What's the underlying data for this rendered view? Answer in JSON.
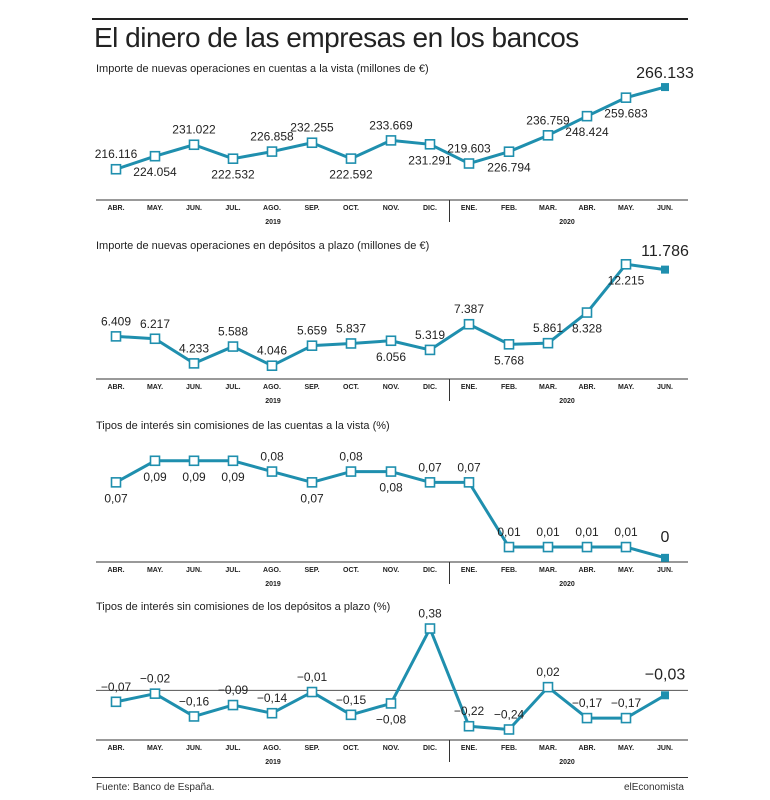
{
  "page": {
    "title": "El dinero de las empresas en los bancos",
    "source": "Fuente: Banco de España.",
    "brand": "elEconomista",
    "line_color": "#1f8fae",
    "last_marker_color": "#1f8fae"
  },
  "chart_data": [
    {
      "type": "line",
      "title": "Importe de nuevas operaciones en cuentas a la vista (millones de €)",
      "categories": [
        "ABR.",
        "MAY.",
        "JUN.",
        "JUL.",
        "AGO.",
        "SEP.",
        "OCT.",
        "NOV.",
        "DIC.",
        "ENE.",
        "FEB.",
        "MAR.",
        "ABR.",
        "MAY.",
        "JUN."
      ],
      "years": [
        "2019",
        "2020"
      ],
      "values": [
        216116,
        224054,
        231022,
        222532,
        226858,
        232255,
        222592,
        233669,
        231291,
        219603,
        226794,
        236759,
        248424,
        259683,
        266133
      ],
      "labels": [
        "216.116",
        "224.054",
        "231.022",
        "222.532",
        "226.858",
        "232.255",
        "222.592",
        "233.669",
        "231.291",
        "219.603",
        "226.794",
        "236.759",
        "248.424",
        "259.683",
        "266.133"
      ],
      "label_pos": [
        "above",
        "below",
        "above",
        "below",
        "above",
        "above",
        "below",
        "above",
        "below",
        "above",
        "below",
        "above",
        "below",
        "below",
        "above"
      ],
      "ylim": [
        212000,
        268000
      ]
    },
    {
      "type": "line",
      "title": "Importe de nuevas operaciones en depósitos a plazo (millones de €)",
      "categories": [
        "ABR.",
        "MAY.",
        "JUN.",
        "JUL.",
        "AGO.",
        "SEP.",
        "OCT.",
        "NOV.",
        "DIC.",
        "ENE.",
        "FEB.",
        "MAR.",
        "ABR.",
        "MAY.",
        "JUN."
      ],
      "years": [
        "2019",
        "2020"
      ],
      "values": [
        6409,
        6217,
        4233,
        5588,
        4046,
        5659,
        5837,
        6056,
        5319,
        7387,
        5768,
        5861,
        8328,
        12215,
        11786
      ],
      "labels": [
        "6.409",
        "6.217",
        "4.233",
        "5.588",
        "4.046",
        "5.659",
        "5.837",
        "6.056",
        "5.319",
        "7.387",
        "5.768",
        "5.861",
        "8.328",
        "12.215",
        "11.786"
      ],
      "label_pos": [
        "above",
        "above",
        "above",
        "above",
        "above",
        "above",
        "above",
        "below",
        "above",
        "above",
        "below",
        "above",
        "below",
        "below",
        "above"
      ],
      "ylim": [
        3700,
        12400
      ]
    },
    {
      "type": "line",
      "title": "Tipos de interés sin comisiones de las cuentas a la vista (%)",
      "categories": [
        "ABR.",
        "MAY.",
        "JUN.",
        "JUL.",
        "AGO.",
        "SEP.",
        "OCT.",
        "NOV.",
        "DIC.",
        "ENE.",
        "FEB.",
        "MAR.",
        "ABR.",
        "MAY.",
        "JUN."
      ],
      "years": [
        "2019",
        "2020"
      ],
      "values": [
        0.07,
        0.09,
        0.09,
        0.09,
        0.08,
        0.07,
        0.08,
        0.08,
        0.07,
        0.07,
        0.01,
        0.01,
        0.01,
        0.01,
        0
      ],
      "labels": [
        "0,07",
        "0,09",
        "0,09",
        "0,09",
        "0,08",
        "0,07",
        "0,08",
        "0,08",
        "0,07",
        "0,07",
        "0,01",
        "0,01",
        "0,01",
        "0,01",
        "0"
      ],
      "label_pos": [
        "below",
        "below",
        "below",
        "below",
        "above",
        "below",
        "above",
        "below",
        "above",
        "above",
        "above",
        "above",
        "above",
        "above",
        "above"
      ],
      "ylim": [
        -0.002,
        0.1
      ]
    },
    {
      "type": "line",
      "title": "Tipos de interés sin comisiones de los depósitos a plazo (%)",
      "categories": [
        "ABR.",
        "MAY.",
        "JUN.",
        "JUL.",
        "AGO.",
        "SEP.",
        "OCT.",
        "NOV.",
        "DIC.",
        "ENE.",
        "FEB.",
        "MAR.",
        "ABR.",
        "MAY.",
        "JUN."
      ],
      "years": [
        "2019",
        "2020"
      ],
      "values": [
        -0.07,
        -0.02,
        -0.16,
        -0.09,
        -0.14,
        -0.01,
        -0.15,
        -0.08,
        0.38,
        -0.22,
        -0.24,
        0.02,
        -0.17,
        -0.17,
        -0.03
      ],
      "labels": [
        "−0,07",
        "−0,02",
        "−0,16",
        "−0,09",
        "−0,14",
        "−0,01",
        "−0,15",
        "−0,08",
        "0,38",
        "−0,22",
        "−0,24",
        "0,02",
        "−0,17",
        "−0,17",
        "−0,03"
      ],
      "label_pos": [
        "above",
        "above",
        "above",
        "above",
        "above",
        "above",
        "above",
        "below",
        "above",
        "above",
        "above",
        "above",
        "above",
        "above",
        "above"
      ],
      "ylim": [
        -0.28,
        0.42
      ],
      "zero_line": true
    }
  ]
}
